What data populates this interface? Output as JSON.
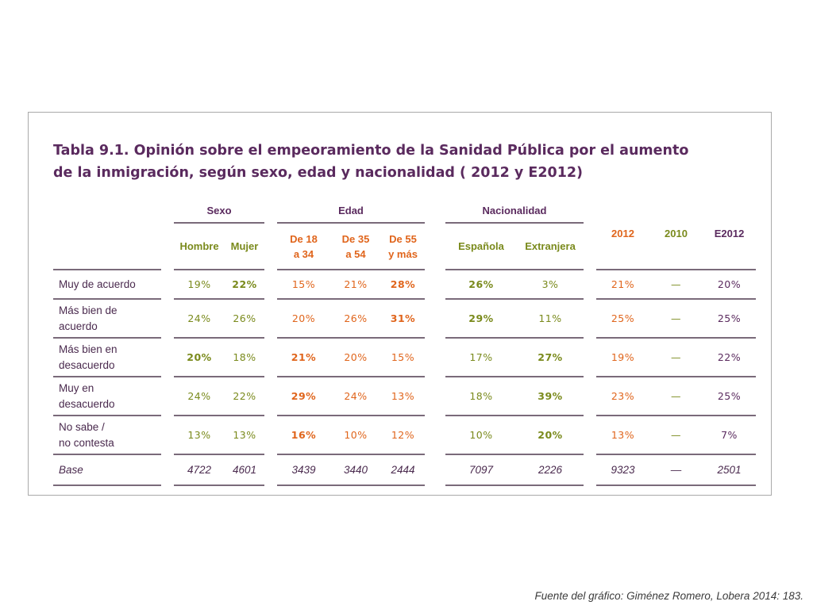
{
  "title": {
    "line1": "Tabla 9.1. Opinión sobre el empeoramiento de la Sanidad Pública por el aumento",
    "line2": "de la inmigración, según sexo, edad y nacionalidad ( 2012 y E2012)"
  },
  "groups": {
    "sexo": "Sexo",
    "edad": "Edad",
    "nacionalidad": "Nacionalidad"
  },
  "columns": {
    "hombre": "Hombre",
    "mujer": "Mujer",
    "edad1_a": "De 18",
    "edad1_b": "a 34",
    "edad2_a": "De 35",
    "edad2_b": "a 54",
    "edad3_a": "De 55",
    "edad3_b": "y más",
    "espanola": "Española",
    "extranjera": "Extranjera",
    "y2012": "2012",
    "y2010": "2010",
    "e2012": "E2012"
  },
  "rows": [
    {
      "label": [
        "Muy de acuerdo"
      ],
      "values": [
        "19%",
        "22%",
        "15%",
        "21%",
        "28%",
        "26%",
        "3%",
        "21%",
        "—",
        "20%"
      ]
    },
    {
      "label": [
        "Más bien de",
        "acuerdo"
      ],
      "values": [
        "24%",
        "26%",
        "20%",
        "26%",
        "31%",
        "29%",
        "11%",
        "25%",
        "—",
        "25%"
      ]
    },
    {
      "label": [
        "Más bien en",
        "desacuerdo"
      ],
      "values": [
        "20%",
        "18%",
        "21%",
        "20%",
        "15%",
        "17%",
        "27%",
        "19%",
        "—",
        "22%"
      ]
    },
    {
      "label": [
        "Muy en",
        "desacuerdo"
      ],
      "values": [
        "24%",
        "22%",
        "29%",
        "24%",
        "13%",
        "18%",
        "39%",
        "23%",
        "—",
        "25%"
      ]
    },
    {
      "label": [
        "No sabe /",
        "no contesta"
      ],
      "values": [
        "13%",
        "13%",
        "16%",
        "10%",
        "12%",
        "10%",
        "20%",
        "13%",
        "—",
        "7%"
      ]
    }
  ],
  "base": {
    "label": "Base",
    "values": [
      "4722",
      "4601",
      "3439",
      "3440",
      "2444",
      "7097",
      "2226",
      "9323",
      "—",
      "2501"
    ]
  },
  "colors": {
    "title": "#5a2a5e",
    "green": "#7a8a1c",
    "orange": "#e0651c",
    "rule": "#7a6a7a"
  },
  "source": "Fuente del gráfico: Giménez Romero, Lobera 2014: 183."
}
